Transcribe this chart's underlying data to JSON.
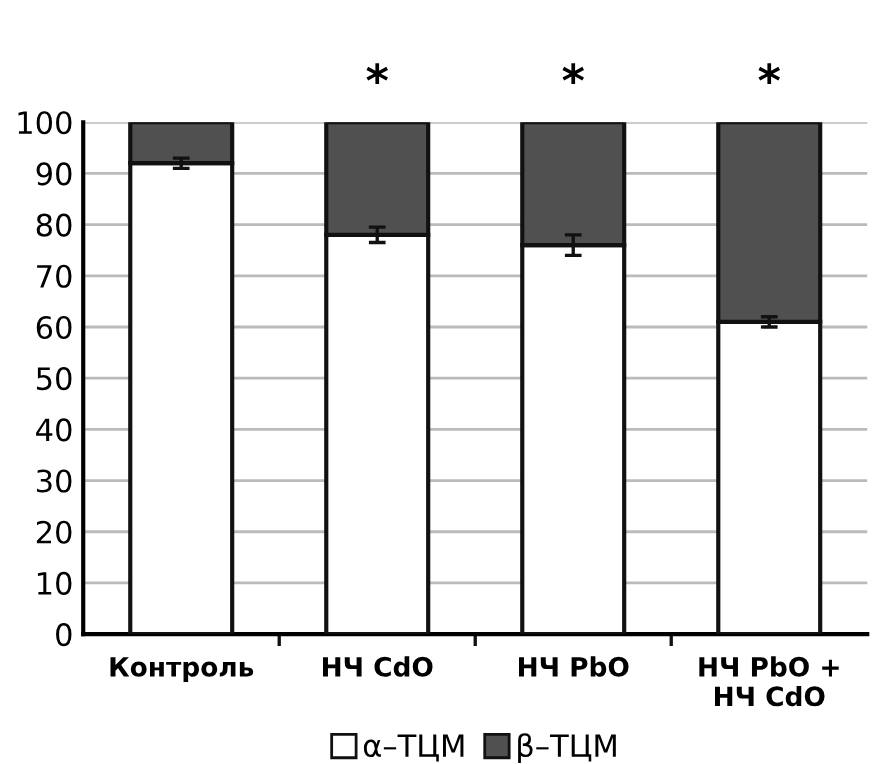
{
  "chart_data": {
    "type": "bar",
    "stacked": true,
    "categories": [
      "Контроль",
      "НЧ CdO",
      "НЧ PbO",
      "НЧ PbO +\nНЧ CdO"
    ],
    "series": [
      {
        "name": "α–ТЦМ",
        "color": "#ffffff",
        "values": [
          92,
          78,
          76,
          61
        ],
        "errors": [
          1,
          1.5,
          2,
          1
        ]
      },
      {
        "name": "β–ТЦМ",
        "color": "#505050",
        "values": [
          8,
          22,
          24,
          39
        ]
      }
    ],
    "ylim": [
      0,
      100
    ],
    "yticks": [
      0,
      10,
      20,
      30,
      40,
      50,
      60,
      70,
      80,
      90,
      100
    ],
    "grid": "y",
    "legend": "bottom",
    "annotations": [
      "*",
      "*",
      "*"
    ]
  }
}
